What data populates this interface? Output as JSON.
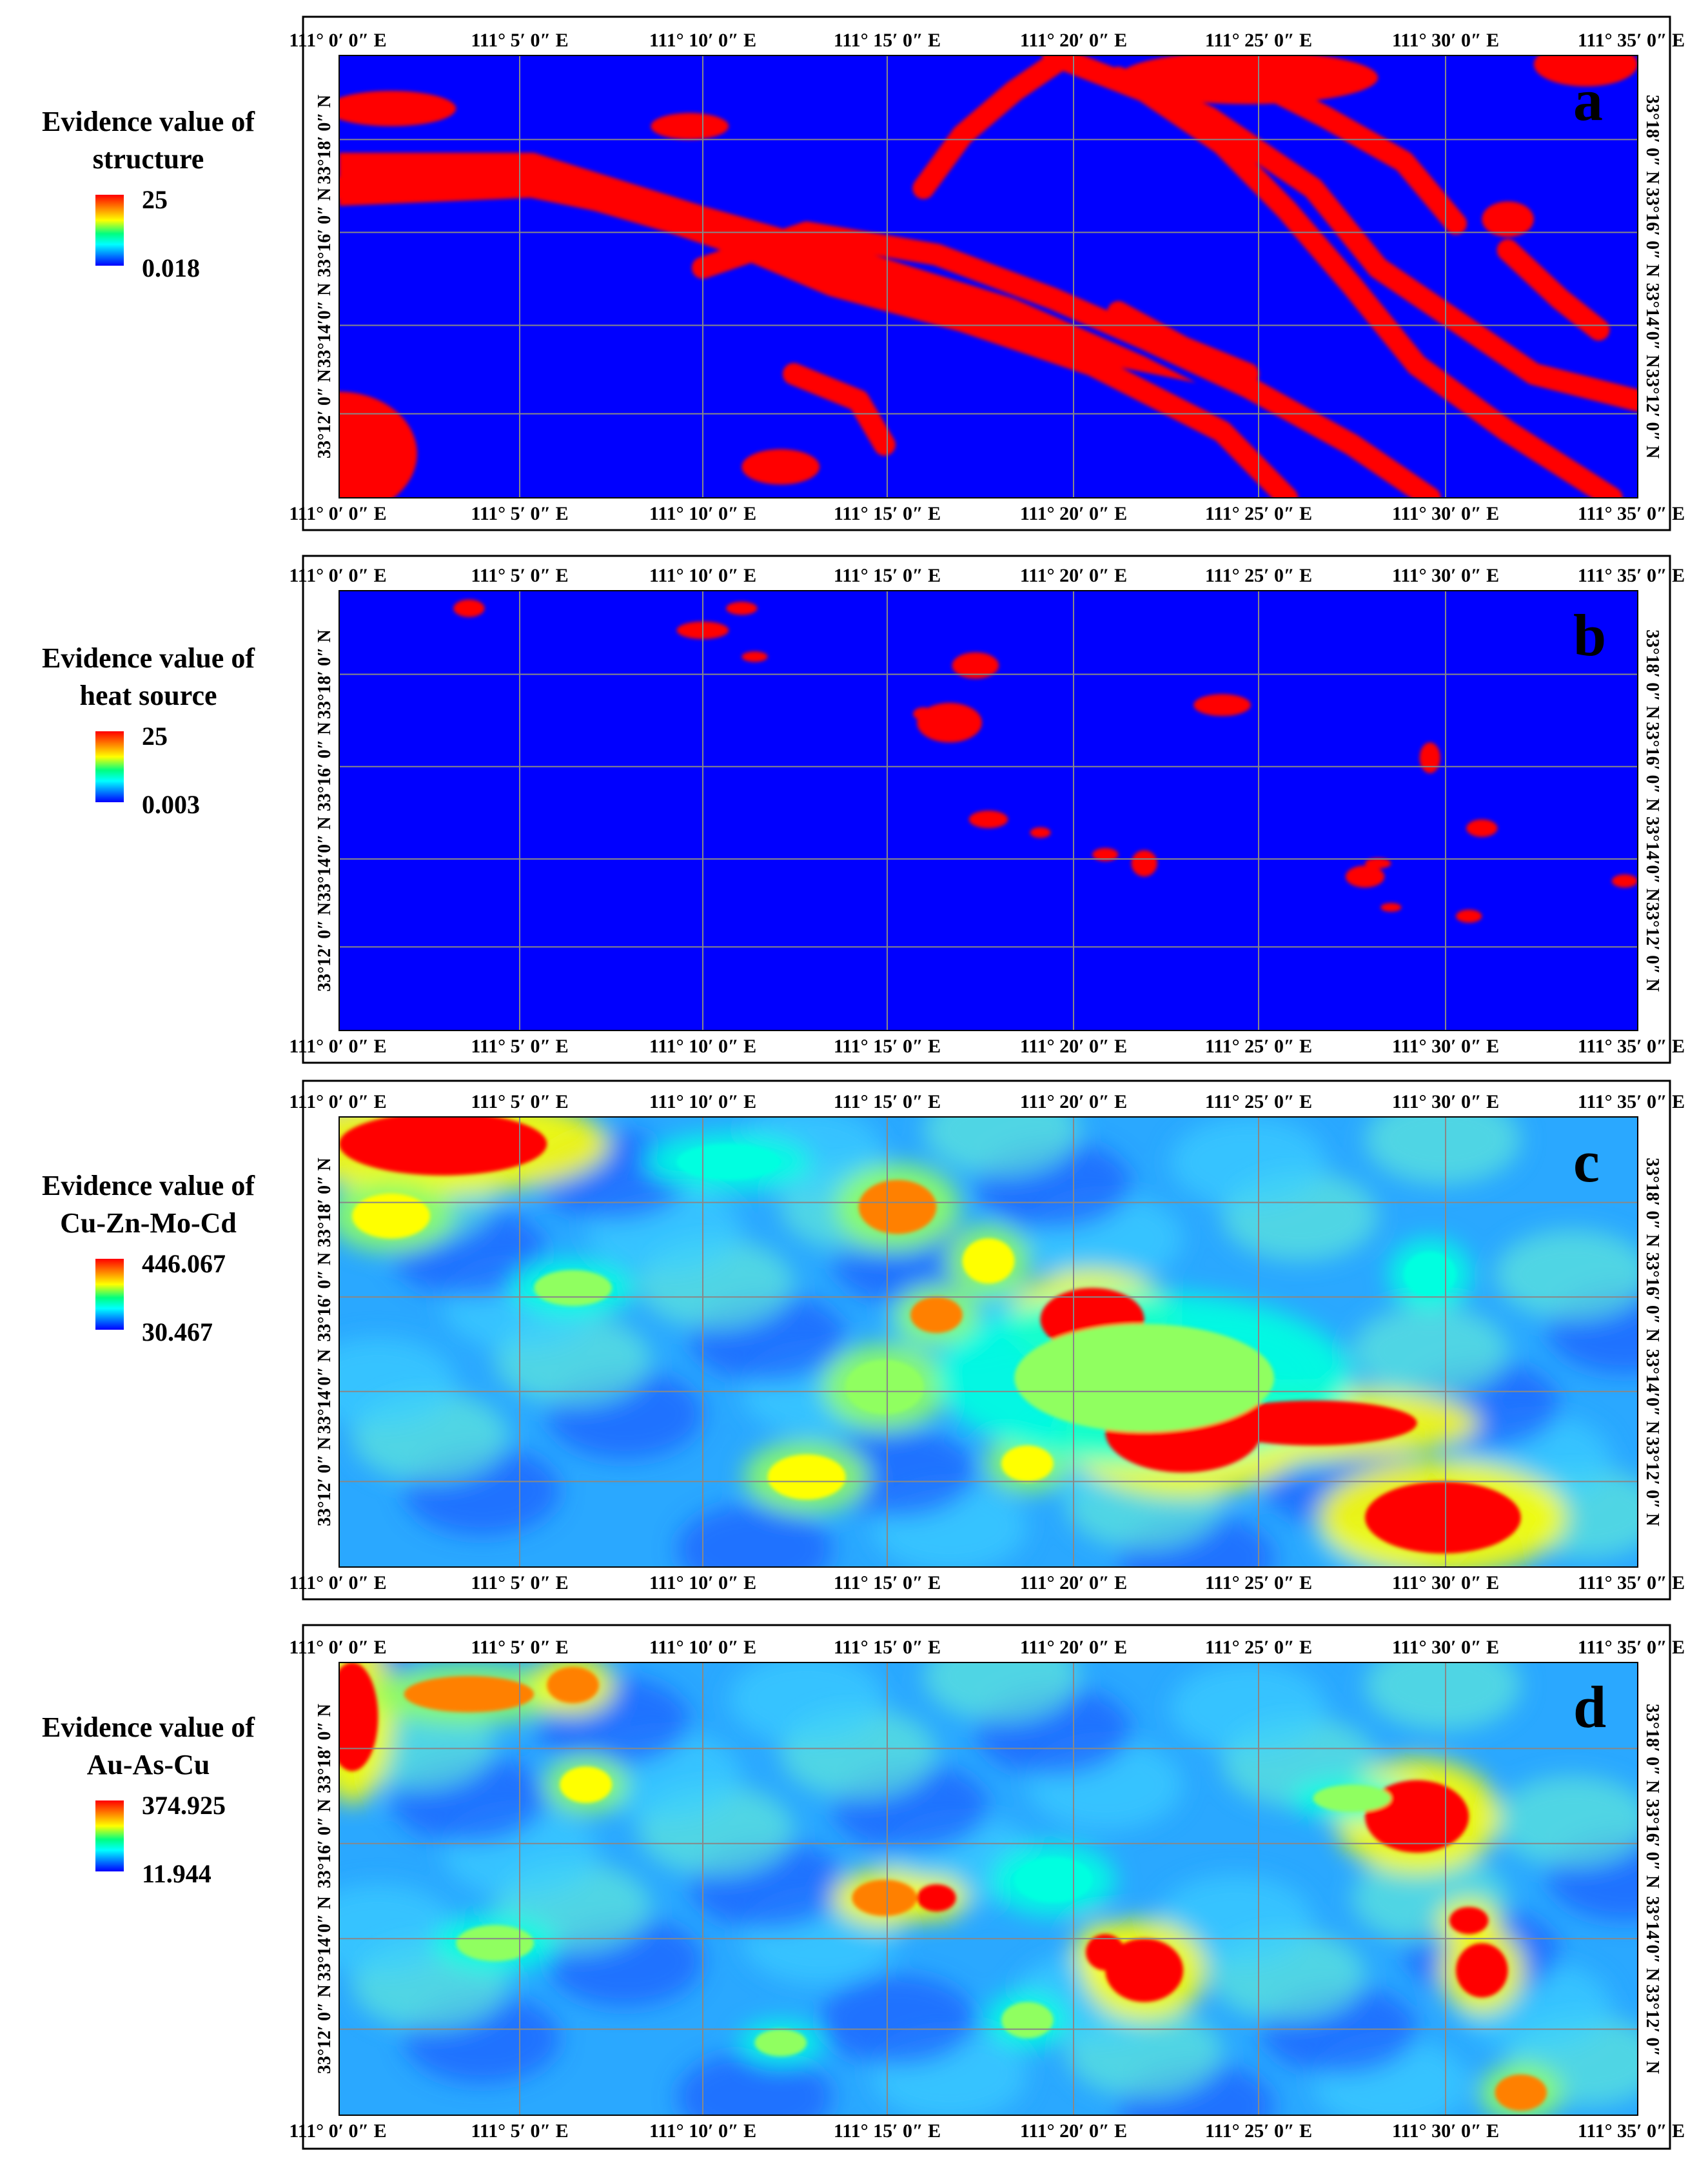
{
  "panels": [
    {
      "letter": "a",
      "legend_title_line1": "Evidence value of",
      "legend_title_line2": "structure",
      "legend_max": "25",
      "legend_min": "0.018",
      "style": "binary"
    },
    {
      "letter": "b",
      "legend_title_line1": "Evidence value of",
      "legend_title_line2": "heat source",
      "legend_max": "25",
      "legend_min": "0.003",
      "style": "binary"
    },
    {
      "letter": "c",
      "legend_title_line1": "Evidence value of",
      "legend_title_line2": "Cu-Zn-Mo-Cd",
      "legend_max": "446.067",
      "legend_min": "30.467",
      "style": "continuous"
    },
    {
      "letter": "d",
      "legend_title_line1": "Evidence value of",
      "legend_title_line2": "Au-As-Cu",
      "legend_max": "374.925",
      "legend_min": "11.944",
      "style": "continuous"
    }
  ],
  "longitude_labels": [
    "111° 0′ 0″ E",
    "111° 5′ 0″ E",
    "111° 10′ 0″ E",
    "111° 15′ 0″ E",
    "111° 20′ 0″ E",
    "111° 25′ 0″ E",
    "111° 30′ 0″ E",
    "111° 35′ 0″ E"
  ],
  "latitude_labels": [
    "33°18′ 0″ N",
    "33°16′ 0″ N",
    "33°14′0″ N",
    "33°12′ 0″ N"
  ],
  "colors": {
    "low": "#0000ff",
    "high": "#ff0000",
    "mid_cyan": "#00c8ff",
    "mid_yellow": "#ffff00",
    "grid": "#888888"
  }
}
